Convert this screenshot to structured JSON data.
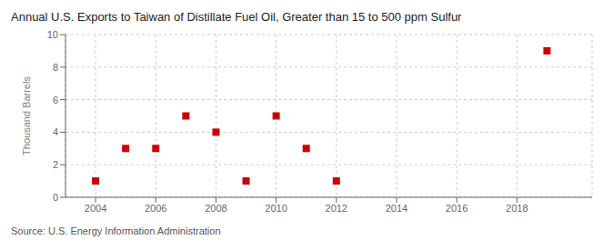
{
  "chart_data": {
    "type": "scatter",
    "title": "Annual U.S. Exports to Taiwan of Distillate Fuel Oil, Greater than 15 to 500 ppm Sulfur",
    "y_label": "Thousand Barrels",
    "annotations": [
      "Source: U.S. Energy Information Administration"
    ],
    "x": [
      2004,
      2005,
      2006,
      2007,
      2008,
      2009,
      2010,
      2011,
      2012,
      2019
    ],
    "values": [
      1,
      3,
      3,
      5,
      4,
      1,
      5,
      3,
      1,
      9
    ],
    "color": "#cc0000",
    "marker": "square",
    "xlim": [
      2003.0,
      2020.5
    ],
    "xticks": [
      2004,
      2006,
      2008,
      2010,
      2012,
      2014,
      2016,
      2018
    ],
    "ylim": [
      0,
      10
    ],
    "yticks": [
      0,
      2,
      4,
      6,
      8,
      10
    ],
    "grid": true
  }
}
